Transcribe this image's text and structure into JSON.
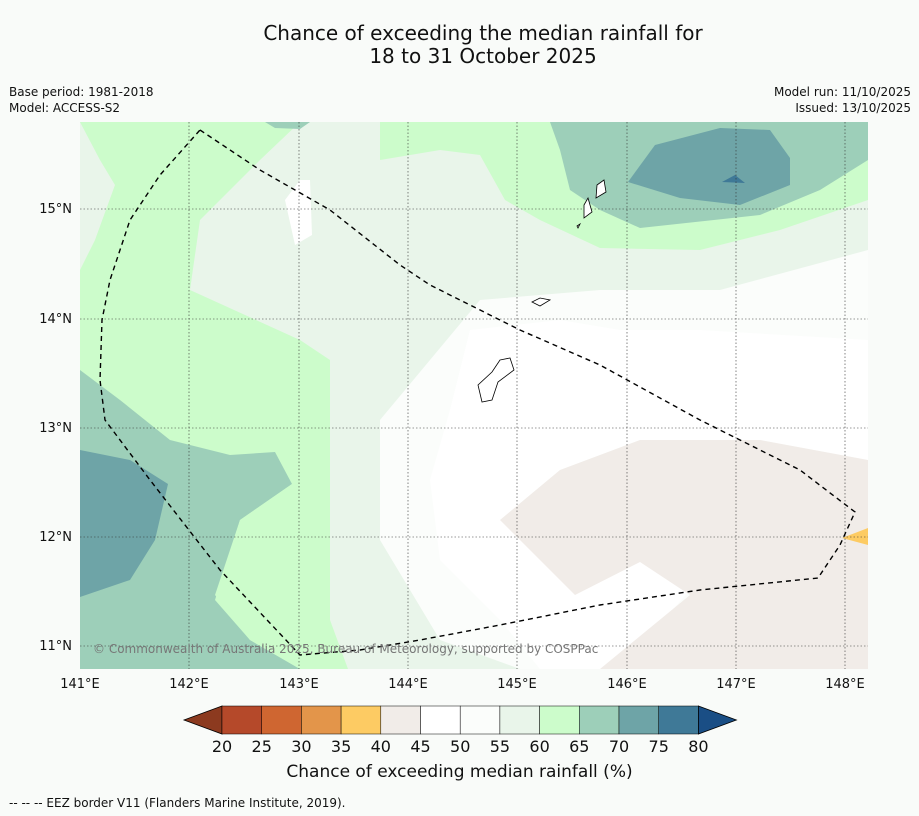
{
  "title_line1": "Chance of exceeding the median rainfall for",
  "title_line2": "18 to 31 October 2025",
  "base_period": "Base period: 1981-2018",
  "model": "Model: ACCESS-S2",
  "model_run": "Model run: 11/10/2025",
  "issued": "Issued: 13/10/2025",
  "copyright": "© Commonwealth of Australia 2025, Bureau of Meteorology, supported by COSPPac",
  "lat_labels": [
    "15°N",
    "14°N",
    "13°N",
    "12°N",
    "11°N"
  ],
  "lon_labels": [
    "141°E",
    "142°E",
    "143°E",
    "144°E",
    "145°E",
    "146°E",
    "147°E",
    "148°E"
  ],
  "colorbar": {
    "ticks": [
      "20",
      "25",
      "30",
      "35",
      "40",
      "45",
      "50",
      "55",
      "60",
      "65",
      "70",
      "75",
      "80"
    ],
    "colors": [
      "#8c3a1f",
      "#b5492a",
      "#cf6631",
      "#e3954a",
      "#fdcb63",
      "#f1ece8",
      "#ffffff",
      "#fbfdfb",
      "#e9f5ea",
      "#ccfccb",
      "#9dcfb9",
      "#6ea4a7",
      "#3f7997",
      "#1a4e85"
    ],
    "label": "Chance of exceeding median rainfall (%)"
  },
  "footnote": "--  --  -- EEZ border V11 (Flanders Marine Institute, 2019)."
}
